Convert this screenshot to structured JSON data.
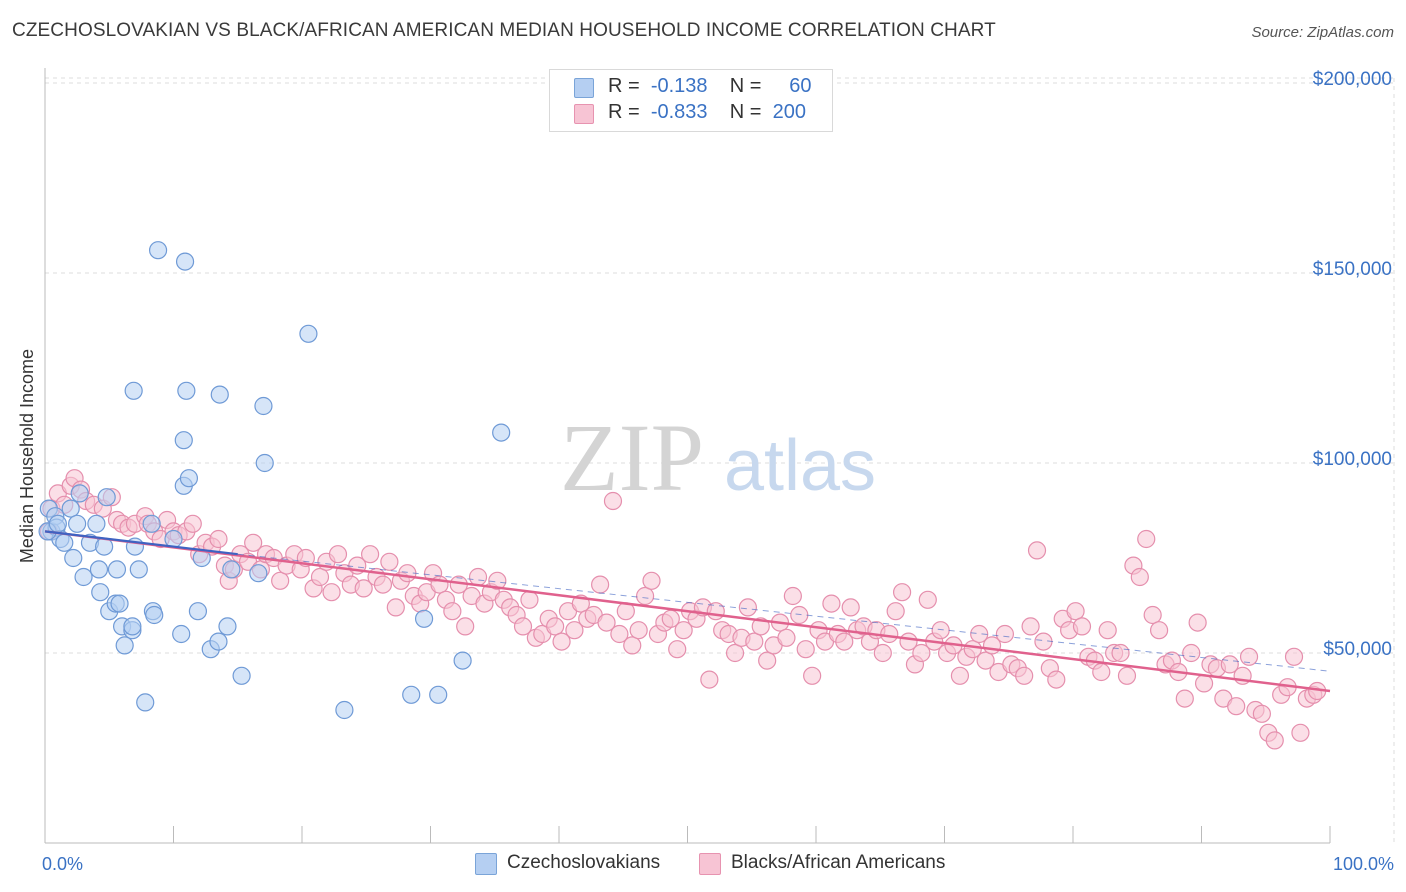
{
  "title": "CZECHOSLOVAKIAN VS BLACK/AFRICAN AMERICAN MEDIAN HOUSEHOLD INCOME CORRELATION CHART",
  "source": "Source: ZipAtlas.com",
  "watermark": {
    "zip": "ZIP",
    "atlas": "atlas"
  },
  "legend": {
    "rows": [
      {
        "r_label": "R =",
        "r_value": "-0.138",
        "n_label": "N =",
        "n_value": "60"
      },
      {
        "r_label": "R =",
        "r_value": "-0.833",
        "n_label": "N =",
        "n_value": "200"
      }
    ]
  },
  "bottom_legend": {
    "series1": "Czechoslovakians",
    "series2": "Blacks/African Americans"
  },
  "colors": {
    "series1_fill": "#b5cff2",
    "series1_stroke": "#6f9ad6",
    "series1_line": "#3f63c2",
    "series2_fill": "#f7c4d4",
    "series2_stroke": "#e58fad",
    "series2_line": "#e0618d",
    "axis_text": "#3a72c4",
    "grid": "#dcdcdc"
  },
  "chart_data": {
    "type": "scatter",
    "title": "CZECHOSLOVAKIAN VS BLACK/AFRICAN AMERICAN MEDIAN HOUSEHOLD INCOME CORRELATION CHART",
    "xlabel": "",
    "ylabel": "Median Household Income",
    "xlim": [
      0,
      100
    ],
    "ylim": [
      0,
      210000
    ],
    "x_tick_labels": [
      "0.0%",
      "100.0%"
    ],
    "y_ticks": [
      50000,
      100000,
      150000,
      200000
    ],
    "y_tick_labels": [
      "$50,000",
      "$100,000",
      "$150,000",
      "$200,000"
    ],
    "grid": true,
    "series": [
      {
        "name": "Czechoslovakians",
        "R": -0.138,
        "N": 60,
        "trend": {
          "x": [
            0,
            15
          ],
          "y": [
            82000,
            76000
          ]
        },
        "points": [
          [
            0.3,
            88000
          ],
          [
            0.5,
            82000
          ],
          [
            0.8,
            86000
          ],
          [
            0.9,
            83000
          ],
          [
            1.2,
            80000
          ],
          [
            1.5,
            79000
          ],
          [
            2.0,
            88000
          ],
          [
            2.2,
            75000
          ],
          [
            2.5,
            84000
          ],
          [
            3.0,
            70000
          ],
          [
            3.5,
            79000
          ],
          [
            4.0,
            84000
          ],
          [
            4.2,
            72000
          ],
          [
            4.3,
            66000
          ],
          [
            4.6,
            78000
          ],
          [
            4.8,
            91000
          ],
          [
            5.0,
            61000
          ],
          [
            5.5,
            63000
          ],
          [
            5.6,
            72000
          ],
          [
            5.8,
            63000
          ],
          [
            6.0,
            57000
          ],
          [
            6.2,
            52000
          ],
          [
            6.8,
            56000
          ],
          [
            6.8,
            57000
          ],
          [
            6.9,
            119000
          ],
          [
            7.0,
            78000
          ],
          [
            7.3,
            72000
          ],
          [
            7.8,
            37000
          ],
          [
            8.3,
            84000
          ],
          [
            8.4,
            61000
          ],
          [
            8.5,
            60000
          ],
          [
            8.8,
            156000
          ],
          [
            10.0,
            80000
          ],
          [
            10.6,
            55000
          ],
          [
            10.8,
            106000
          ],
          [
            10.8,
            94000
          ],
          [
            10.9,
            153000
          ],
          [
            11.0,
            119000
          ],
          [
            11.2,
            96000
          ],
          [
            11.9,
            61000
          ],
          [
            12.2,
            75000
          ],
          [
            12.9,
            51000
          ],
          [
            13.5,
            53000
          ],
          [
            13.6,
            118000
          ],
          [
            14.2,
            57000
          ],
          [
            14.5,
            72000
          ],
          [
            15.3,
            44000
          ],
          [
            16.6,
            71000
          ],
          [
            17.0,
            115000
          ],
          [
            17.1,
            100000
          ],
          [
            20.5,
            134000
          ],
          [
            23.3,
            35000
          ],
          [
            28.5,
            39000
          ],
          [
            29.5,
            59000
          ],
          [
            30.6,
            39000
          ],
          [
            32.5,
            48000
          ],
          [
            35.5,
            108000
          ],
          [
            2.7,
            92000
          ],
          [
            0.2,
            82000
          ],
          [
            1.0,
            84000
          ]
        ]
      },
      {
        "name": "Blacks/African Americans",
        "R": -0.833,
        "N": 200,
        "trend": {
          "x": [
            0,
            100
          ],
          "y": [
            82000,
            40000
          ]
        },
        "points": [
          [
            0.3,
            82000
          ],
          [
            0.5,
            88000
          ],
          [
            1.0,
            92000
          ],
          [
            1.5,
            89000
          ],
          [
            2.0,
            94000
          ],
          [
            2.3,
            96000
          ],
          [
            2.8,
            93000
          ],
          [
            3.2,
            90000
          ],
          [
            3.8,
            89000
          ],
          [
            4.5,
            88000
          ],
          [
            5.2,
            91000
          ],
          [
            5.6,
            85000
          ],
          [
            6.0,
            84000
          ],
          [
            6.5,
            83000
          ],
          [
            7.0,
            84000
          ],
          [
            7.8,
            86000
          ],
          [
            8.0,
            84000
          ],
          [
            8.5,
            82000
          ],
          [
            9.0,
            80000
          ],
          [
            9.5,
            85000
          ],
          [
            10.0,
            82000
          ],
          [
            10.4,
            81000
          ],
          [
            11.0,
            82000
          ],
          [
            11.5,
            84000
          ],
          [
            12.0,
            76000
          ],
          [
            12.5,
            79000
          ],
          [
            13.0,
            78000
          ],
          [
            13.5,
            80000
          ],
          [
            14.0,
            73000
          ],
          [
            14.3,
            69000
          ],
          [
            14.7,
            72000
          ],
          [
            15.2,
            76000
          ],
          [
            15.8,
            74000
          ],
          [
            16.2,
            79000
          ],
          [
            16.8,
            72000
          ],
          [
            17.2,
            76000
          ],
          [
            17.8,
            75000
          ],
          [
            18.3,
            69000
          ],
          [
            18.8,
            73000
          ],
          [
            19.4,
            76000
          ],
          [
            19.9,
            72000
          ],
          [
            20.3,
            75000
          ],
          [
            20.9,
            67000
          ],
          [
            21.4,
            70000
          ],
          [
            21.9,
            74000
          ],
          [
            22.3,
            66000
          ],
          [
            22.8,
            76000
          ],
          [
            23.3,
            71000
          ],
          [
            23.8,
            68000
          ],
          [
            24.3,
            73000
          ],
          [
            24.8,
            67000
          ],
          [
            25.3,
            76000
          ],
          [
            25.8,
            70000
          ],
          [
            26.3,
            68000
          ],
          [
            26.8,
            74000
          ],
          [
            27.3,
            62000
          ],
          [
            27.7,
            69000
          ],
          [
            28.2,
            71000
          ],
          [
            28.7,
            65000
          ],
          [
            29.2,
            63000
          ],
          [
            29.7,
            66000
          ],
          [
            30.2,
            71000
          ],
          [
            30.7,
            68000
          ],
          [
            31.2,
            64000
          ],
          [
            31.7,
            61000
          ],
          [
            32.2,
            68000
          ],
          [
            32.7,
            57000
          ],
          [
            33.2,
            65000
          ],
          [
            33.7,
            70000
          ],
          [
            34.2,
            63000
          ],
          [
            34.7,
            66000
          ],
          [
            35.2,
            69000
          ],
          [
            35.7,
            64000
          ],
          [
            36.2,
            62000
          ],
          [
            36.7,
            60000
          ],
          [
            37.2,
            57000
          ],
          [
            37.7,
            64000
          ],
          [
            38.2,
            54000
          ],
          [
            38.7,
            55000
          ],
          [
            39.2,
            59000
          ],
          [
            39.7,
            57000
          ],
          [
            40.2,
            53000
          ],
          [
            40.7,
            61000
          ],
          [
            41.2,
            56000
          ],
          [
            41.7,
            63000
          ],
          [
            42.2,
            59000
          ],
          [
            42.7,
            60000
          ],
          [
            43.2,
            68000
          ],
          [
            43.7,
            58000
          ],
          [
            44.2,
            90000
          ],
          [
            44.7,
            55000
          ],
          [
            45.2,
            61000
          ],
          [
            45.7,
            52000
          ],
          [
            46.2,
            56000
          ],
          [
            46.7,
            65000
          ],
          [
            47.2,
            69000
          ],
          [
            47.7,
            55000
          ],
          [
            48.2,
            58000
          ],
          [
            48.7,
            59000
          ],
          [
            49.2,
            51000
          ],
          [
            49.7,
            56000
          ],
          [
            50.2,
            61000
          ],
          [
            50.7,
            59000
          ],
          [
            51.2,
            62000
          ],
          [
            51.7,
            43000
          ],
          [
            52.2,
            61000
          ],
          [
            52.7,
            56000
          ],
          [
            53.2,
            55000
          ],
          [
            53.7,
            50000
          ],
          [
            54.2,
            54000
          ],
          [
            54.7,
            62000
          ],
          [
            55.2,
            53000
          ],
          [
            55.7,
            57000
          ],
          [
            56.2,
            48000
          ],
          [
            56.7,
            52000
          ],
          [
            57.2,
            58000
          ],
          [
            57.7,
            54000
          ],
          [
            58.2,
            65000
          ],
          [
            58.7,
            60000
          ],
          [
            59.2,
            51000
          ],
          [
            59.7,
            44000
          ],
          [
            60.2,
            56000
          ],
          [
            60.7,
            53000
          ],
          [
            61.2,
            63000
          ],
          [
            61.7,
            55000
          ],
          [
            62.2,
            53000
          ],
          [
            62.7,
            62000
          ],
          [
            63.2,
            56000
          ],
          [
            63.7,
            57000
          ],
          [
            64.2,
            53000
          ],
          [
            64.7,
            56000
          ],
          [
            65.2,
            50000
          ],
          [
            65.7,
            55000
          ],
          [
            66.2,
            61000
          ],
          [
            66.7,
            66000
          ],
          [
            67.2,
            53000
          ],
          [
            67.7,
            47000
          ],
          [
            68.2,
            50000
          ],
          [
            68.7,
            64000
          ],
          [
            69.2,
            53000
          ],
          [
            69.7,
            56000
          ],
          [
            70.2,
            50000
          ],
          [
            70.7,
            52000
          ],
          [
            71.2,
            44000
          ],
          [
            71.7,
            49000
          ],
          [
            72.2,
            51000
          ],
          [
            72.7,
            55000
          ],
          [
            73.2,
            48000
          ],
          [
            73.7,
            52000
          ],
          [
            74.2,
            45000
          ],
          [
            74.7,
            55000
          ],
          [
            75.2,
            47000
          ],
          [
            75.7,
            46000
          ],
          [
            76.2,
            44000
          ],
          [
            76.7,
            57000
          ],
          [
            77.2,
            77000
          ],
          [
            77.7,
            53000
          ],
          [
            78.2,
            46000
          ],
          [
            78.7,
            43000
          ],
          [
            79.2,
            59000
          ],
          [
            79.7,
            56000
          ],
          [
            80.2,
            61000
          ],
          [
            80.7,
            57000
          ],
          [
            81.2,
            49000
          ],
          [
            81.7,
            48000
          ],
          [
            82.2,
            45000
          ],
          [
            82.7,
            56000
          ],
          [
            83.2,
            50000
          ],
          [
            83.7,
            50000
          ],
          [
            84.2,
            44000
          ],
          [
            84.7,
            73000
          ],
          [
            85.2,
            70000
          ],
          [
            85.7,
            80000
          ],
          [
            86.2,
            60000
          ],
          [
            86.7,
            56000
          ],
          [
            87.2,
            47000
          ],
          [
            87.7,
            48000
          ],
          [
            88.2,
            45000
          ],
          [
            88.7,
            38000
          ],
          [
            89.2,
            50000
          ],
          [
            89.7,
            58000
          ],
          [
            90.2,
            42000
          ],
          [
            90.7,
            47000
          ],
          [
            91.2,
            46000
          ],
          [
            91.7,
            38000
          ],
          [
            92.2,
            47000
          ],
          [
            92.7,
            36000
          ],
          [
            93.2,
            44000
          ],
          [
            93.7,
            49000
          ],
          [
            94.2,
            35000
          ],
          [
            94.7,
            34000
          ],
          [
            95.2,
            29000
          ],
          [
            95.7,
            27000
          ],
          [
            96.2,
            39000
          ],
          [
            96.7,
            41000
          ],
          [
            97.2,
            49000
          ],
          [
            97.7,
            29000
          ],
          [
            98.2,
            38000
          ],
          [
            98.7,
            39000
          ],
          [
            99.0,
            40000
          ]
        ]
      }
    ]
  }
}
